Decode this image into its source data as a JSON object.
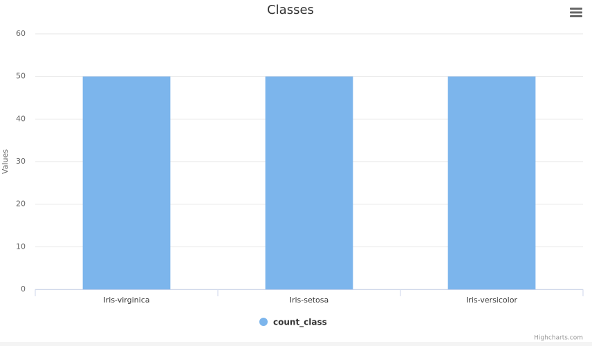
{
  "chart_data": {
    "type": "bar",
    "title": "Classes",
    "y_axis_label": "Values",
    "categories": [
      "Iris-virginica",
      "Iris-setosa",
      "Iris-versicolor"
    ],
    "series": [
      {
        "name": "count_class",
        "color": "#7cb5ec",
        "values": [
          50,
          50,
          50
        ]
      }
    ],
    "ylim": [
      0,
      60
    ],
    "yticks": [
      0,
      10,
      20,
      30,
      40,
      50,
      60
    ],
    "grid": true,
    "legend": "bottom",
    "credits": "Highcharts.com"
  }
}
